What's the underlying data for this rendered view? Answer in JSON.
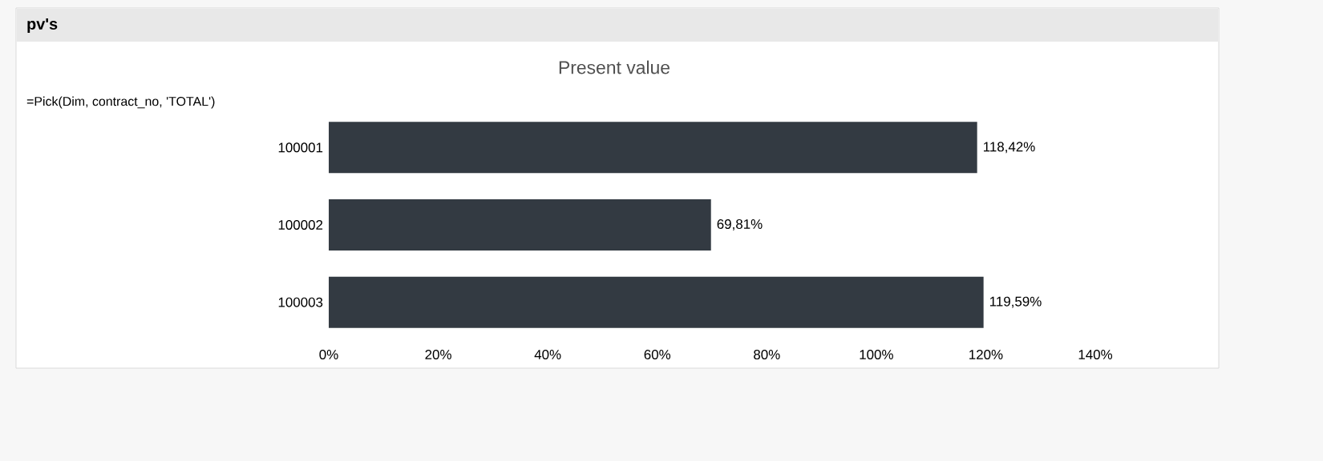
{
  "chart_data": {
    "type": "bar",
    "orientation": "horizontal",
    "title": "pv's",
    "subtitle": "Present value",
    "annotations": [
      "=Pick(Dim, contract_no, 'TOTAL')"
    ],
    "categories": [
      "100001",
      "100002",
      "100003"
    ],
    "values": [
      118.42,
      69.81,
      119.59
    ],
    "value_labels": [
      "118,42%",
      "69,81%",
      "119,59%"
    ],
    "color": "#333a42",
    "xlim": [
      0,
      140
    ],
    "xticks": [
      {
        "value": 0,
        "label": "0%"
      },
      {
        "value": 20,
        "label": "20%"
      },
      {
        "value": 40,
        "label": "40%"
      },
      {
        "value": 60,
        "label": "60%"
      },
      {
        "value": 80,
        "label": "80%"
      },
      {
        "value": 100,
        "label": "100%"
      },
      {
        "value": 120,
        "label": "120%"
      },
      {
        "value": 140,
        "label": "140%"
      }
    ],
    "grid": false
  }
}
